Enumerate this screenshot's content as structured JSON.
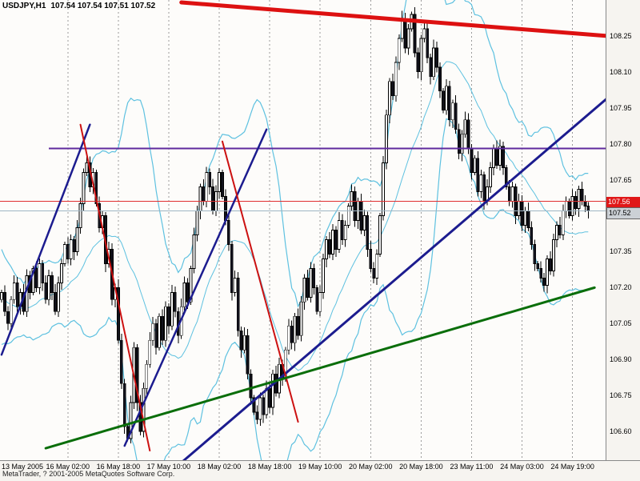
{
  "header": {
    "symbol_label": "USDJPY,H1",
    "quote_label": "107.54 107.54 107.51 107.52"
  },
  "footer": {
    "copyright": "MetaTrader, ? 2001-2005 MetaQuotes Software Corp."
  },
  "chart_data": {
    "type": "candlestick",
    "symbol": "USDJPY",
    "timeframe": "H1",
    "ohlc": {
      "open": 107.54,
      "high": 107.54,
      "low": 107.51,
      "close": 107.52
    },
    "bars_total": 192,
    "y_axis": {
      "min": 106.48,
      "max": 108.4,
      "ticks": [
        108.25,
        108.1,
        107.95,
        107.8,
        107.65,
        107.35,
        107.2,
        107.05,
        106.9,
        106.75,
        106.6
      ],
      "bid": {
        "price": 107.56,
        "label": "107.56",
        "bg": "#e01818",
        "text_color": "#ffffff"
      },
      "last": {
        "price": 107.52,
        "label": "107.52",
        "bg": "#ccd1d6",
        "text_color": "#000000",
        "border": "#666666"
      }
    },
    "x_axis": {
      "labels": [
        {
          "text": "13 May 2005",
          "bar": 5,
          "grid": false,
          "align": "left"
        },
        {
          "text": "16 May 02:00",
          "bar": 21,
          "grid": true
        },
        {
          "text": "16 May 18:00",
          "bar": 37,
          "grid": true
        },
        {
          "text": "17 May 10:00",
          "bar": 53,
          "grid": true
        },
        {
          "text": "18 May 02:00",
          "bar": 69,
          "grid": true
        },
        {
          "text": "18 May 18:00",
          "bar": 85,
          "grid": true
        },
        {
          "text": "19 May 10:00",
          "bar": 101,
          "grid": true
        },
        {
          "text": "20 May 02:00",
          "bar": 117,
          "grid": true
        },
        {
          "text": "20 May 18:00",
          "bar": 133,
          "grid": true
        },
        {
          "text": "23 May 11:00",
          "bar": 149,
          "grid": true
        },
        {
          "text": "24 May 03:00",
          "bar": 165,
          "grid": true
        },
        {
          "text": "24 May 19:00",
          "bar": 181,
          "grid": true
        }
      ]
    },
    "wick": 0.03,
    "pre_history": [
      107.4,
      107.35,
      107.3,
      107.28,
      107.32,
      107.26,
      107.2,
      107.24,
      107.16,
      107.1,
      107.14,
      107.06,
      107.02,
      107.06,
      107.12,
      107.08,
      107.02,
      107.06,
      107.12,
      107.15
    ],
    "closes": [
      107.18,
      107.1,
      107.05,
      107.15,
      107.22,
      107.12,
      107.18,
      107.1,
      107.25,
      107.18,
      107.28,
      107.2,
      107.3,
      107.22,
      107.15,
      107.25,
      107.18,
      107.1,
      107.22,
      107.3,
      107.38,
      107.32,
      107.4,
      107.35,
      107.45,
      107.55,
      107.68,
      107.72,
      107.62,
      107.68,
      107.55,
      107.45,
      107.5,
      107.3,
      107.36,
      107.15,
      107.2,
      106.98,
      106.8,
      106.62,
      106.57,
      106.72,
      106.95,
      106.72,
      106.6,
      106.78,
      106.88,
      106.98,
      107.05,
      106.95,
      107.08,
      106.98,
      107.12,
      107.04,
      107.18,
      107.1,
      107.0,
      107.12,
      107.22,
      107.14,
      107.28,
      107.42,
      107.52,
      107.62,
      107.56,
      107.68,
      107.62,
      107.52,
      107.6,
      107.68,
      107.58,
      107.48,
      107.38,
      107.18,
      107.24,
      107.02,
      106.94,
      107.0,
      106.84,
      106.74,
      106.68,
      106.65,
      106.74,
      106.67,
      106.78,
      106.7,
      106.84,
      106.76,
      106.88,
      106.82,
      106.94,
      107.04,
      106.97,
      107.08,
      107.0,
      107.14,
      107.24,
      107.16,
      107.28,
      107.2,
      107.1,
      107.18,
      107.32,
      107.4,
      107.34,
      107.44,
      107.36,
      107.48,
      107.4,
      107.46,
      107.54,
      107.6,
      107.48,
      107.56,
      107.44,
      107.5,
      107.36,
      107.28,
      107.24,
      107.34,
      107.5,
      107.72,
      107.92,
      108.06,
      108.0,
      108.14,
      108.24,
      108.32,
      108.2,
      108.28,
      108.34,
      108.18,
      108.1,
      108.24,
      108.28,
      108.16,
      108.08,
      108.2,
      108.12,
      108.02,
      107.94,
      108.04,
      107.9,
      107.97,
      107.86,
      107.76,
      107.84,
      107.9,
      107.78,
      107.68,
      107.74,
      107.6,
      107.67,
      107.56,
      107.62,
      107.7,
      107.78,
      107.71,
      107.79,
      107.7,
      107.62,
      107.56,
      107.62,
      107.5,
      107.56,
      107.46,
      107.52,
      107.45,
      107.38,
      107.3,
      107.28,
      107.24,
      107.21,
      107.32,
      107.27,
      107.4,
      107.46,
      107.42,
      107.52,
      107.56,
      107.5,
      107.58,
      107.53,
      107.61,
      107.56,
      107.54,
      107.52
    ],
    "bollinger": {
      "period": 20,
      "deviation": 2,
      "color": "#5ec1e0"
    },
    "colors": {
      "background": "#f6f4f0",
      "plot_background": "#fdfcfa",
      "grid": "#9a9a9a",
      "candle_bull": "#ffffff",
      "candle_bear": "#12121c",
      "candle_outline": "#000000",
      "axis_text": "#000000"
    },
    "hlines": [
      {
        "name": "resistance-purple",
        "price": 107.78,
        "color": "#5f2a9e",
        "width": 2,
        "from_bar": 15
      },
      {
        "name": "last-price-line",
        "price": 107.52,
        "color": "#9fb6c4",
        "width": 1
      },
      {
        "name": "bid-price-line",
        "price": 107.56,
        "color": "#e03030",
        "width": 1
      }
    ],
    "trendlines": [
      {
        "name": "upper-resistance",
        "color": "#dd1111",
        "width": 5,
        "from": [
          57,
          108.39
        ],
        "to": [
          192,
          108.25
        ]
      },
      {
        "name": "ascending-steep-1",
        "color": "#1c1c8f",
        "width": 2.5,
        "from": [
          0,
          106.92
        ],
        "to": [
          28,
          107.88
        ]
      },
      {
        "name": "ascending-steep-2",
        "color": "#1c1c8f",
        "width": 2.5,
        "from": [
          39,
          106.54
        ],
        "to": [
          84,
          107.86
        ]
      },
      {
        "name": "ascending-major",
        "color": "#1c1c8f",
        "width": 3,
        "from": [
          57,
          106.47
        ],
        "to": [
          192,
          107.99
        ]
      },
      {
        "name": "descending-red-1",
        "color": "#cc1111",
        "width": 2,
        "from": [
          25,
          107.88
        ],
        "to": [
          47,
          106.52
        ]
      },
      {
        "name": "descending-red-2",
        "color": "#cc1111",
        "width": 2,
        "from": [
          70,
          107.81
        ],
        "to": [
          94,
          106.64
        ]
      },
      {
        "name": "support-green",
        "color": "#0a6e0a",
        "width": 3,
        "from": [
          14,
          106.53
        ],
        "to": [
          188,
          107.2
        ]
      }
    ]
  }
}
